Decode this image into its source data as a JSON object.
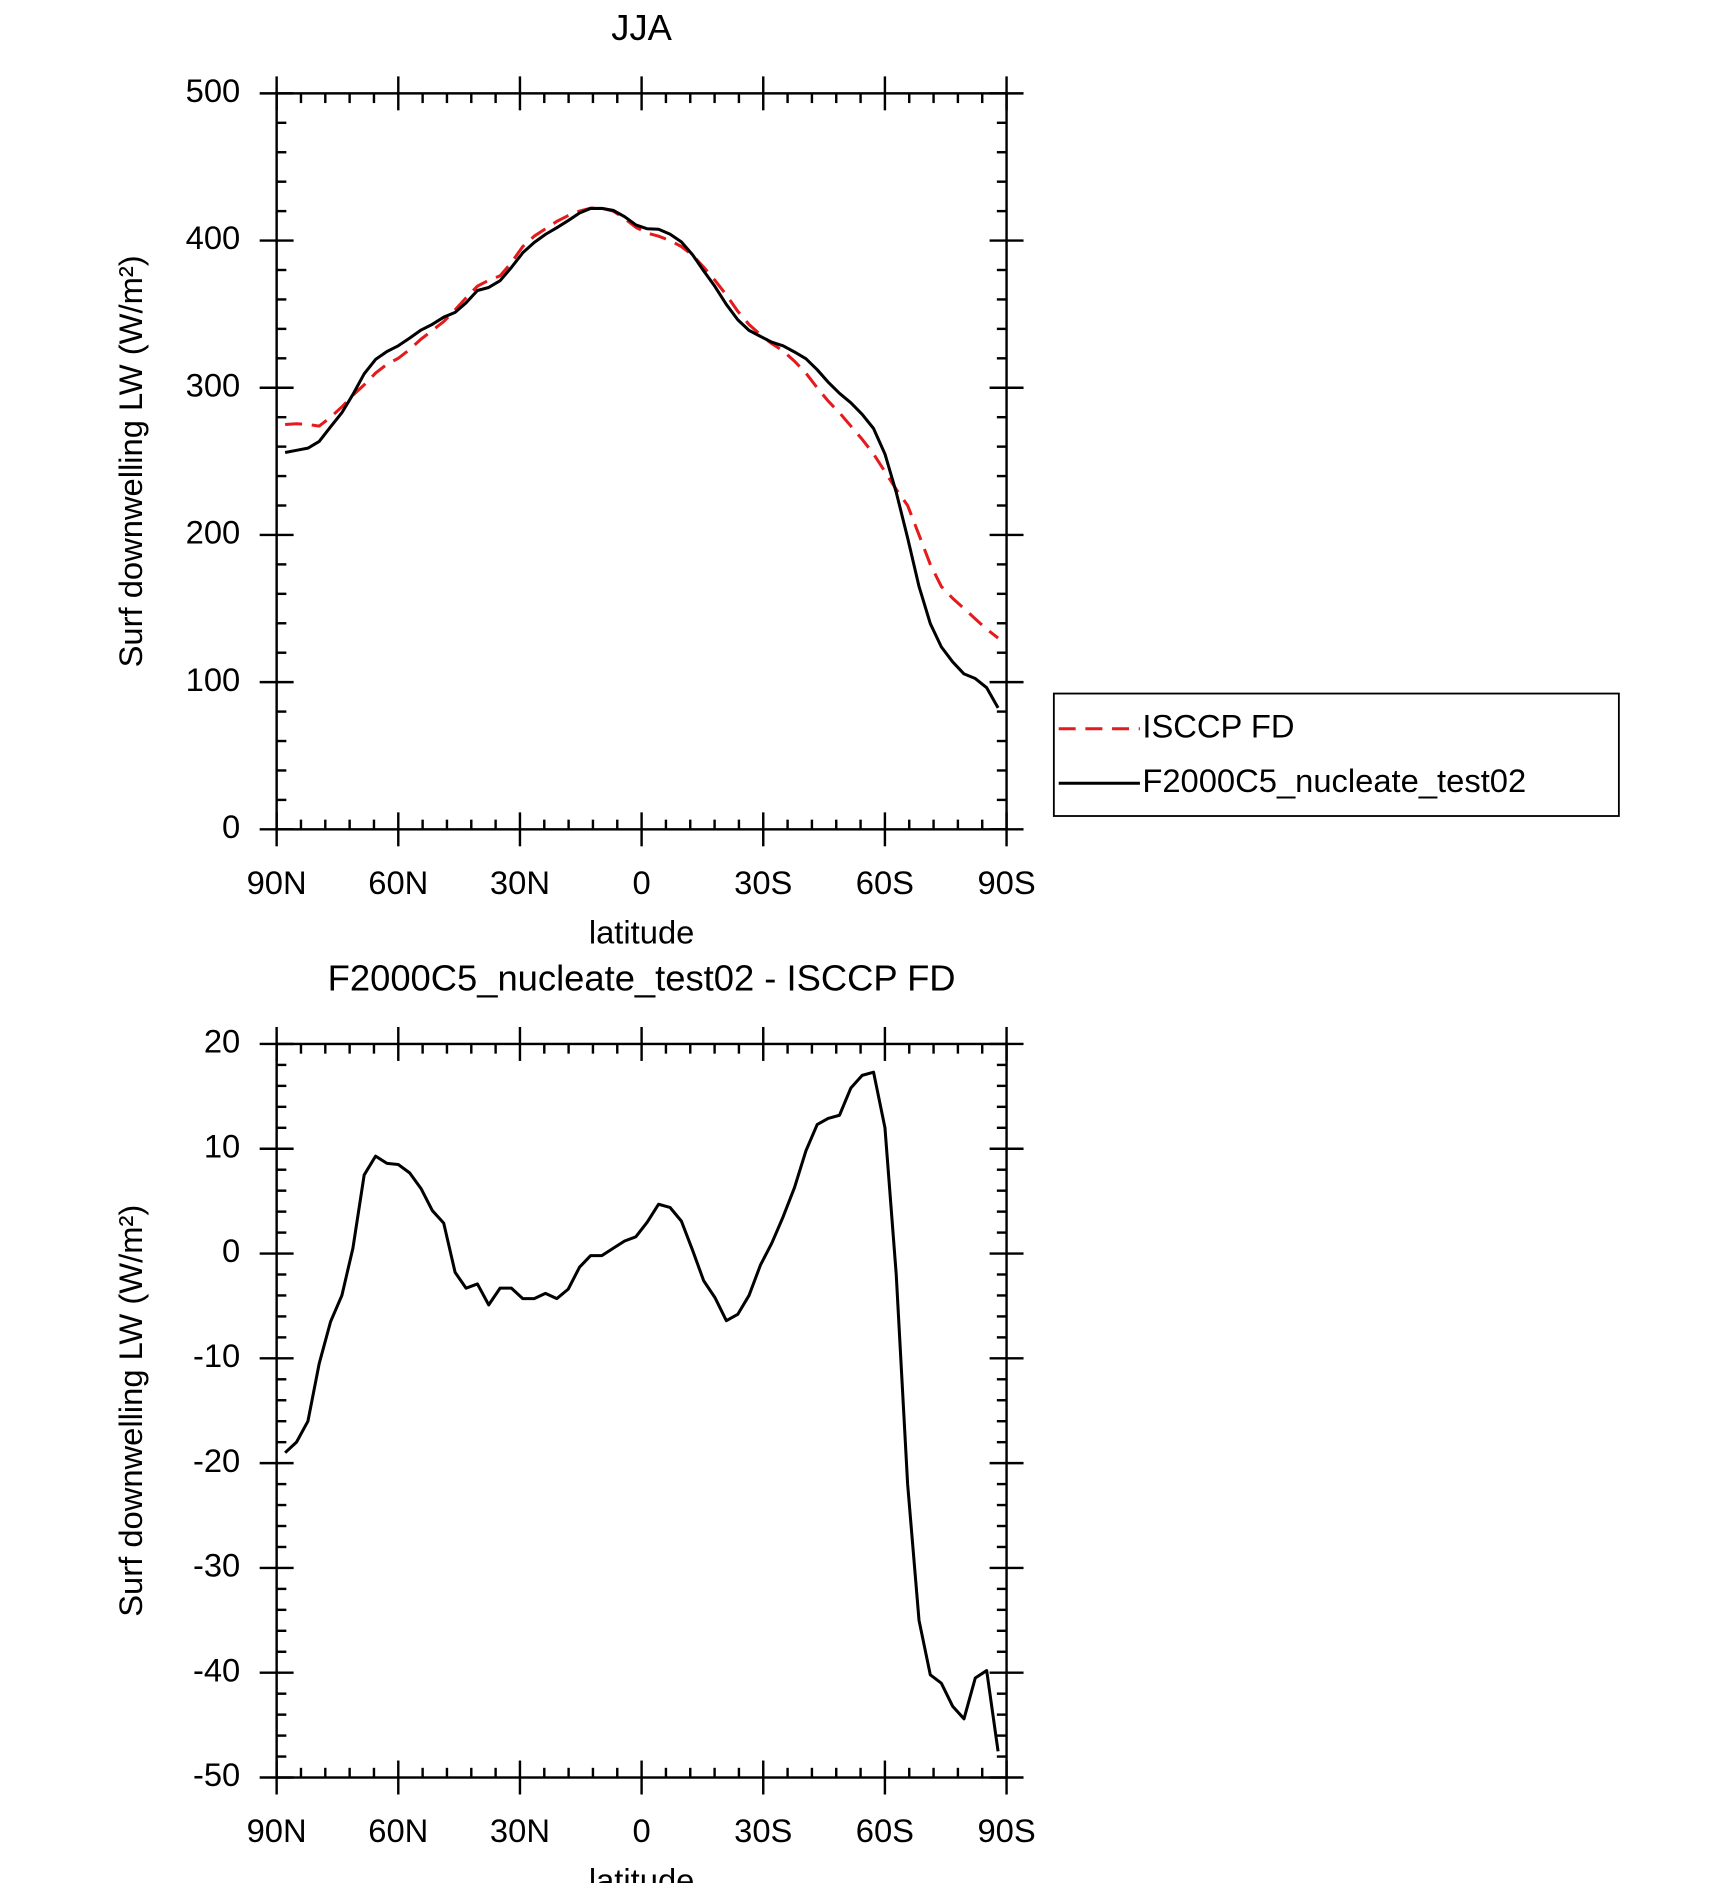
{
  "chart_data": [
    {
      "type": "line",
      "title": "JJA",
      "xlabel": "latitude",
      "ylabel": "Surf downwelling LW (W/m²)",
      "x": [
        87.9,
        85.1,
        82.3,
        79.5,
        76.7,
        73.9,
        71.2,
        68.4,
        65.6,
        62.8,
        60.0,
        57.2,
        54.4,
        51.6,
        48.8,
        46.0,
        43.3,
        40.5,
        37.7,
        34.9,
        32.1,
        29.3,
        26.5,
        23.7,
        20.9,
        18.1,
        15.3,
        12.6,
        9.8,
        7.0,
        4.2,
        1.4,
        -1.4,
        -4.2,
        -7.0,
        -9.8,
        -12.6,
        -15.3,
        -18.1,
        -20.9,
        -23.7,
        -26.5,
        -29.3,
        -32.1,
        -34.9,
        -37.7,
        -40.5,
        -43.3,
        -46.0,
        -48.8,
        -51.6,
        -54.4,
        -57.2,
        -60.0,
        -62.8,
        -65.6,
        -68.4,
        -71.2,
        -73.9,
        -76.7,
        -79.5,
        -82.3,
        -85.1,
        -87.9
      ],
      "series": [
        {
          "name": "ISCCP FD",
          "color": "#e41a1c",
          "linestyle": "dashed",
          "values": [
            275,
            275.5,
            275,
            274,
            280,
            287,
            295,
            302,
            310,
            316,
            320,
            326,
            333,
            339,
            345,
            353,
            361,
            369,
            373,
            376,
            385,
            396,
            403,
            408,
            413,
            417,
            420,
            422,
            422,
            420,
            415,
            409,
            405,
            403,
            400,
            396,
            390,
            382,
            373,
            363,
            352,
            343,
            336,
            330,
            325,
            318,
            310,
            300,
            291,
            283,
            274,
            265,
            255,
            243,
            231,
            220,
            200,
            180,
            165,
            157,
            150,
            143,
            136,
            130
          ]
        },
        {
          "name": "F2000C5_nucleate_test02",
          "color": "#000000",
          "linestyle": "solid",
          "values": [
            256,
            257.5,
            259,
            263.5,
            273.5,
            283,
            295.5,
            309.5,
            319.3,
            324.6,
            328.5,
            333.7,
            339.2,
            343.1,
            347.9,
            351.2,
            357.7,
            366.1,
            368.1,
            372.7,
            381.7,
            391.7,
            398.7,
            404.2,
            408.7,
            413.6,
            418.7,
            421.8,
            421.8,
            420.5,
            416.2,
            410.6,
            408,
            407.7,
            404.4,
            399.1,
            390.3,
            379.4,
            368.8,
            356.6,
            346.2,
            339,
            334.9,
            331,
            328.5,
            324.3,
            319.8,
            312.3,
            303.9,
            296.2,
            289.8,
            282,
            272.3,
            255,
            229,
            198,
            165,
            139.8,
            124,
            113.8,
            105.6,
            102.5,
            96.2,
            82.5
          ]
        }
      ],
      "xlim": [
        90,
        -90
      ],
      "xticks": [
        {
          "value": 90,
          "label": "90N"
        },
        {
          "value": 60,
          "label": "60N"
        },
        {
          "value": 30,
          "label": "30N"
        },
        0,
        {
          "value": -30,
          "label": "30S"
        },
        {
          "value": -60,
          "label": "60S"
        },
        {
          "value": -90,
          "label": "90S"
        }
      ],
      "ylim": [
        0,
        500
      ],
      "yticks": [
        0,
        100,
        200,
        300,
        400,
        500
      ]
    },
    {
      "type": "line",
      "title": "F2000C5_nucleate_test02 - ISCCP FD",
      "xlabel": "latitude",
      "ylabel": "Surf downwelling LW (W/m²)",
      "x": [
        87.9,
        85.1,
        82.3,
        79.5,
        76.7,
        73.9,
        71.2,
        68.4,
        65.6,
        62.8,
        60.0,
        57.2,
        54.4,
        51.6,
        48.8,
        46.0,
        43.3,
        40.5,
        37.7,
        34.9,
        32.1,
        29.3,
        26.5,
        23.7,
        20.9,
        18.1,
        15.3,
        12.6,
        9.8,
        7.0,
        4.2,
        1.4,
        -1.4,
        -4.2,
        -7.0,
        -9.8,
        -12.6,
        -15.3,
        -18.1,
        -20.9,
        -23.7,
        -26.5,
        -29.3,
        -32.1,
        -34.9,
        -37.7,
        -40.5,
        -43.3,
        -46.0,
        -48.8,
        -51.6,
        -54.4,
        -57.2,
        -60.0,
        -62.8,
        -65.6,
        -68.4,
        -71.2,
        -73.9,
        -76.7,
        -79.5,
        -82.3,
        -85.1,
        -87.9
      ],
      "series": [
        {
          "color": "#000000",
          "linestyle": "solid",
          "values": [
            -19,
            -18,
            -16,
            -10.5,
            -6.5,
            -4,
            0.5,
            7.5,
            9.3,
            8.6,
            8.5,
            7.7,
            6.2,
            4.1,
            2.9,
            -1.8,
            -3.3,
            -2.9,
            -4.9,
            -3.3,
            -3.3,
            -4.3,
            -4.3,
            -3.8,
            -4.3,
            -3.4,
            -1.3,
            -0.2,
            -0.2,
            0.5,
            1.2,
            1.6,
            3.0,
            4.7,
            4.4,
            3.1,
            0.3,
            -2.6,
            -4.2,
            -6.4,
            -5.8,
            -4.0,
            -1.1,
            1.0,
            3.5,
            6.3,
            9.8,
            12.3,
            12.9,
            13.2,
            15.8,
            17.0,
            17.3,
            12.0,
            -2.0,
            -22,
            -35,
            -40.2,
            -41,
            -43.2,
            -44.4,
            -40.5,
            -39.8,
            -47.5
          ]
        }
      ],
      "xlim": [
        90,
        -90
      ],
      "xticks": [
        {
          "value": 90,
          "label": "90N"
        },
        {
          "value": 60,
          "label": "60N"
        },
        {
          "value": 30,
          "label": "30N"
        },
        0,
        {
          "value": -30,
          "label": "30S"
        },
        {
          "value": -60,
          "label": "60S"
        },
        {
          "value": -90,
          "label": "90S"
        }
      ],
      "ylim": [
        -50,
        20
      ],
      "yticks": [
        -50,
        -40,
        -30,
        -20,
        -10,
        0,
        10,
        20
      ]
    }
  ]
}
